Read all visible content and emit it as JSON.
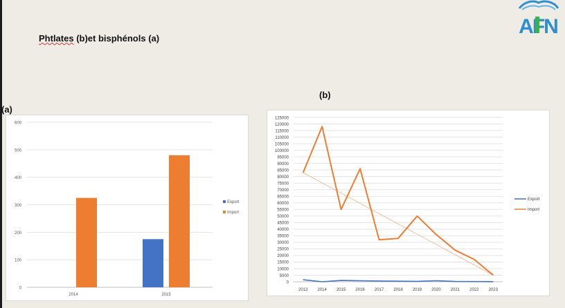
{
  "page": {
    "title_prefix": "Phtlates",
    "title_rest": " (b)et bisphénols (a)",
    "panel_a_label": "(a)",
    "panel_b_label": "(b)",
    "logo_text": "AFN"
  },
  "chart_data": [
    {
      "type": "bar",
      "categories": [
        "2014",
        "2015"
      ],
      "series": [
        {
          "name": "Export",
          "values": [
            0,
            175
          ],
          "color": "#4472c4"
        },
        {
          "name": "Import",
          "values": [
            325,
            480
          ],
          "color": "#ed7d31"
        }
      ],
      "yticks": [
        "0",
        "100",
        "200",
        "300",
        "400",
        "500",
        "600"
      ],
      "ylim": [
        0,
        600
      ],
      "grid": true,
      "legend": "right"
    },
    {
      "type": "line",
      "x": [
        "2013",
        "2014",
        "2015",
        "2016",
        "2017",
        "2018",
        "2019",
        "2020",
        "2021",
        "2022",
        "2023"
      ],
      "series": [
        {
          "name": "Export",
          "values": [
            1500,
            0,
            1000,
            800,
            600,
            400,
            300,
            800,
            200,
            150,
            100
          ],
          "color": "#4472c4"
        },
        {
          "name": "Import",
          "values": [
            83000,
            118000,
            55000,
            86000,
            32000,
            33000,
            50000,
            36000,
            24000,
            17000,
            5000
          ],
          "color": "#ed7d31"
        }
      ],
      "trendline": {
        "series": "Import",
        "from": 83000,
        "to": 5000
      },
      "yticks": [
        "0",
        "5000",
        "10000",
        "15000",
        "20000",
        "25000",
        "30000",
        "35000",
        "40000",
        "45000",
        "50000",
        "55000",
        "60000",
        "65000",
        "70000",
        "75000",
        "80000",
        "85000",
        "90000",
        "95000",
        "100000",
        "105000",
        "110000",
        "115000",
        "120000",
        "125000"
      ],
      "ylim": [
        0,
        125000
      ],
      "grid": true,
      "legend": "right"
    }
  ]
}
